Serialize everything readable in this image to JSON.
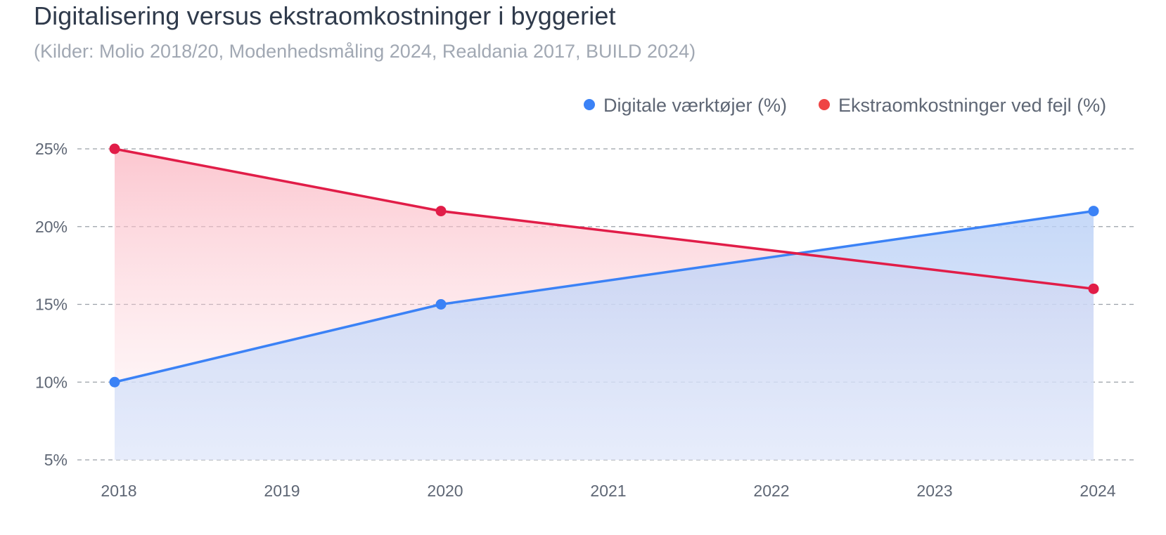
{
  "chart_data": {
    "type": "line",
    "title": "Digitalisering versus ekstraomkostninger i byggeriet",
    "subtitle": "(Kilder: Molio 2018/20, Modenhedsmåling 2024, Realdania 2017, BUILD 2024)",
    "categories": [
      "2018",
      "2019",
      "2020",
      "2021",
      "2022",
      "2023",
      "2024"
    ],
    "y_ticks": [
      5,
      10,
      15,
      20,
      25
    ],
    "y_tick_labels": [
      "5%",
      "10%",
      "15%",
      "20%",
      "25%"
    ],
    "ylim": [
      5,
      25
    ],
    "grid": true,
    "legend_position": "top-right",
    "series": [
      {
        "name": "Digitale værktøjer (%)",
        "color": "#3b82f6",
        "fill": "#bcd3f7",
        "legend_color": "#3b82f6",
        "points": [
          {
            "x": "2018",
            "y": 10
          },
          {
            "x": "2020",
            "y": 15
          },
          {
            "x": "2024",
            "y": 21
          }
        ]
      },
      {
        "name": "Ekstraomkostninger ved fejl (%)",
        "color": "#e11d48",
        "fill": "#fbb4c0",
        "legend_color": "#ef4444",
        "points": [
          {
            "x": "2018",
            "y": 25
          },
          {
            "x": "2020",
            "y": 21
          },
          {
            "x": "2024",
            "y": 16
          }
        ]
      }
    ]
  }
}
